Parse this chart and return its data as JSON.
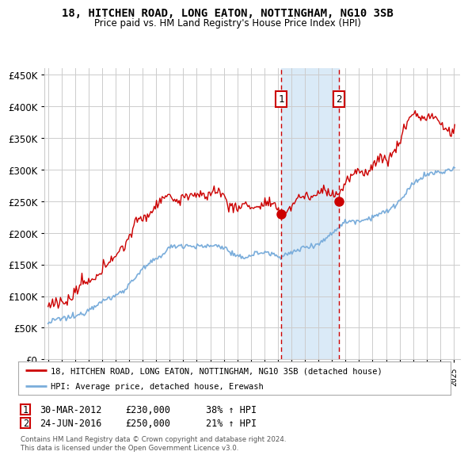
{
  "title": "18, HITCHEN ROAD, LONG EATON, NOTTINGHAM, NG10 3SB",
  "subtitle": "Price paid vs. HM Land Registry's House Price Index (HPI)",
  "legend_line1": "18, HITCHEN ROAD, LONG EATON, NOTTINGHAM, NG10 3SB (detached house)",
  "legend_line2": "HPI: Average price, detached house, Erewash",
  "footer": "Contains HM Land Registry data © Crown copyright and database right 2024.\nThis data is licensed under the Open Government Licence v3.0.",
  "sale1_date": "30-MAR-2012",
  "sale1_price": 230000,
  "sale1_label": "38% ↑ HPI",
  "sale2_date": "24-JUN-2016",
  "sale2_price": 250000,
  "sale2_label": "21% ↑ HPI",
  "xlim_start": 1994.75,
  "xlim_end": 2025.5,
  "ylim_min": 0,
  "ylim_max": 460000,
  "red_color": "#cc0000",
  "blue_color": "#7aaddb",
  "shade_color": "#daeaf7",
  "marker_box_color": "#cc0000",
  "vline_color": "#cc0000",
  "grid_color": "#cccccc",
  "bg_color": "#ffffff"
}
